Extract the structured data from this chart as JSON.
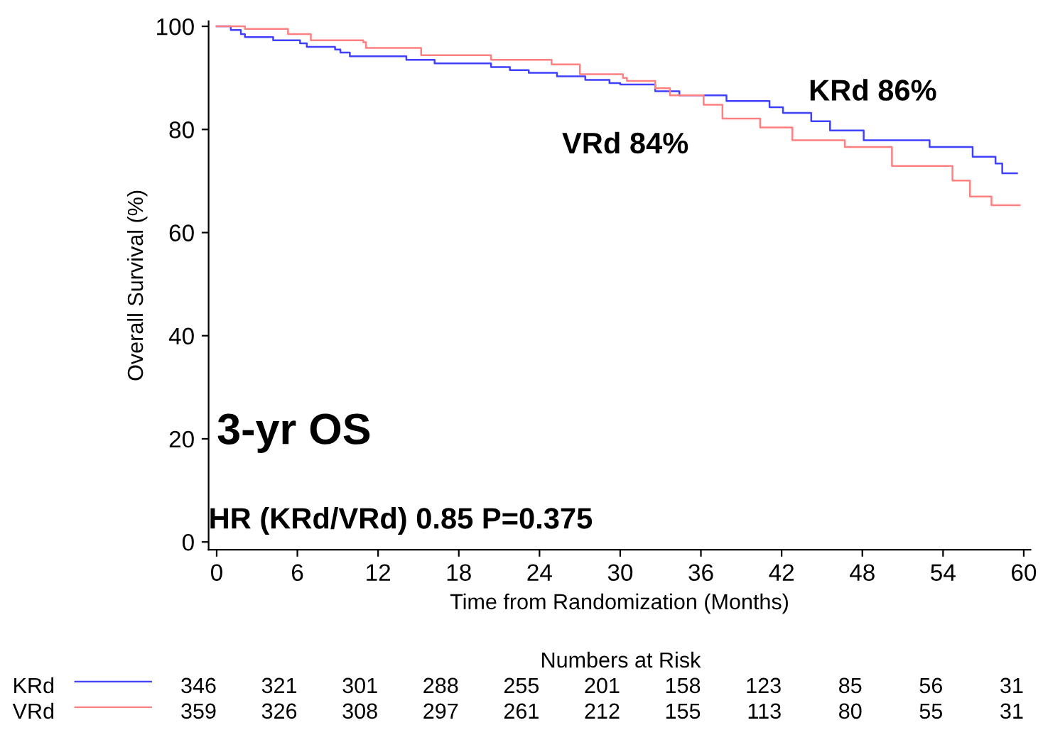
{
  "chart_data": {
    "type": "step",
    "xlabel": "Time from Randomization (Months)",
    "ylabel": "Overall Survival (%)",
    "xlim": [
      -0.6,
      60.5
    ],
    "ylim": [
      -1.5,
      101
    ],
    "xticks": [
      0,
      6,
      12,
      18,
      24,
      30,
      36,
      42,
      48,
      54,
      60
    ],
    "yticks": [
      0,
      20,
      40,
      60,
      80,
      100
    ],
    "grid": false,
    "legend": "bottom left",
    "series": [
      {
        "name": "KRd",
        "color": "#4040ff",
        "x": [
          0,
          1.05,
          1.8,
          2.1,
          4.2,
          6.2,
          6.7,
          8.8,
          9.2,
          9.9,
          14.1,
          16.2,
          20.4,
          21.8,
          23.2,
          25.3,
          27.4,
          29.2,
          30.0,
          32.6,
          34.4,
          37.9,
          41.1,
          42.1,
          44.2,
          45.6,
          48.1,
          53.0,
          56.2,
          57.9,
          58.4,
          59.5
        ],
        "values": [
          100,
          99.3,
          98.5,
          97.9,
          97.3,
          96.7,
          96.0,
          95.5,
          94.9,
          94.2,
          93.5,
          92.8,
          92.1,
          91.5,
          91.0,
          90.3,
          89.6,
          89.0,
          88.7,
          87.4,
          86.6,
          85.5,
          84.3,
          83.2,
          81.6,
          79.8,
          77.9,
          76.6,
          74.7,
          73.4,
          71.5,
          71.5
        ]
      },
      {
        "name": "VRd",
        "color": "#ff8080",
        "x": [
          0,
          2.1,
          5.3,
          7.0,
          10.9,
          11.1,
          15.2,
          20.4,
          24.9,
          27.0,
          30.2,
          30.5,
          32.6,
          33.7,
          36.2,
          37.6,
          40.4,
          42.8,
          46.7,
          50.2,
          54.7,
          56.0,
          57.6,
          59.7
        ],
        "values": [
          100,
          99.5,
          98.5,
          97.3,
          96.9,
          95.8,
          94.4,
          93.5,
          92.6,
          90.7,
          90.0,
          89.4,
          88.0,
          86.6,
          84.8,
          82.1,
          80.4,
          77.9,
          76.6,
          72.9,
          70.1,
          67.0,
          65.3,
          65.3
        ]
      }
    ],
    "annotations": [
      "3-yr OS",
      "HR (KRd/VRd) 0.85 P=0.375",
      "KRd 86%",
      "VRd 84%",
      "Numbers at Risk",
      "346",
      "321",
      "301",
      "288",
      "255",
      "201",
      "158",
      "123",
      "85",
      "56",
      "31",
      "359",
      "326",
      "308",
      "297",
      "261",
      "212",
      "155",
      "113",
      "80",
      "55",
      "31"
    ]
  }
}
